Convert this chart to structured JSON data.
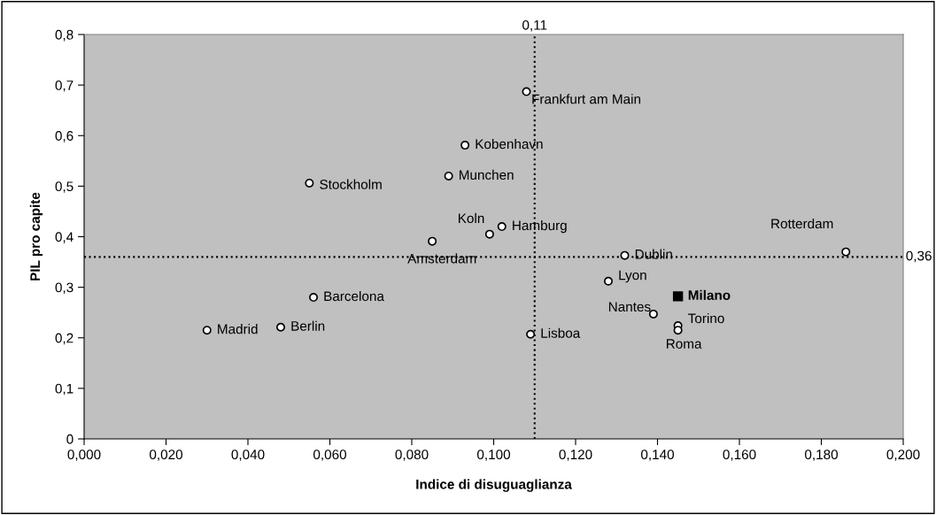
{
  "chart_data": {
    "type": "scatter",
    "xlabel": "Indice di disuguaglianza",
    "ylabel": "PIL pro capite",
    "series": [
      {
        "color": "#ffffff",
        "marker": "circle",
        "x": [
          0.03,
          0.048,
          0.056,
          0.055,
          0.085,
          0.089,
          0.093,
          0.099,
          0.102,
          0.108,
          0.109,
          0.132,
          0.128,
          0.139,
          0.145,
          0.145,
          0.186
        ],
        "values": [
          0.215,
          0.221,
          0.28,
          0.506,
          0.391,
          0.52,
          0.581,
          0.405,
          0.42,
          0.687,
          0.207,
          0.363,
          0.312,
          0.247,
          0.224,
          0.215,
          0.37
        ]
      },
      {
        "color": "#000000",
        "marker": "square",
        "x": [
          0.145
        ],
        "values": [
          0.282
        ]
      }
    ],
    "annotations": [
      {
        "text": "Madrid",
        "x": 0.03,
        "y": 0.215
      },
      {
        "text": "Berlin",
        "x": 0.048,
        "y": 0.221
      },
      {
        "text": "Barcelona",
        "x": 0.056,
        "y": 0.28
      },
      {
        "text": "Stockholm",
        "x": 0.055,
        "y": 0.506
      },
      {
        "text": "Amsterdam",
        "x": 0.085,
        "y": 0.391
      },
      {
        "text": "Munchen",
        "x": 0.089,
        "y": 0.52
      },
      {
        "text": "Kobenhavn",
        "x": 0.093,
        "y": 0.581
      },
      {
        "text": "Koln",
        "x": 0.099,
        "y": 0.405
      },
      {
        "text": "Hamburg",
        "x": 0.102,
        "y": 0.42
      },
      {
        "text": "Frankfurt am Main",
        "x": 0.108,
        "y": 0.687
      },
      {
        "text": "Lisboa",
        "x": 0.109,
        "y": 0.207
      },
      {
        "text": "Dublin",
        "x": 0.132,
        "y": 0.363
      },
      {
        "text": "Lyon",
        "x": 0.128,
        "y": 0.312
      },
      {
        "text": "Nantes",
        "x": 0.139,
        "y": 0.247
      },
      {
        "text": "Torino",
        "x": 0.145,
        "y": 0.224
      },
      {
        "text": "Roma",
        "x": 0.145,
        "y": 0.215
      },
      {
        "text": "Rotterdam",
        "x": 0.186,
        "y": 0.37
      },
      {
        "text": "Milano",
        "x": 0.145,
        "y": 0.282
      }
    ],
    "ref_lines": [
      {
        "axis": "x",
        "value": 0.11,
        "label": "0,11",
        "color": "#000000",
        "line_style": "dotted"
      },
      {
        "axis": "y",
        "value": 0.36,
        "label": "0,36",
        "color": "#000000",
        "line_style": "dotted"
      }
    ],
    "xlim": [
      0,
      0.2
    ],
    "ylim": [
      0,
      0.8
    ],
    "xticks": [
      {
        "value": 0,
        "label": "0,000"
      },
      {
        "value": 0.02,
        "label": "0,020"
      },
      {
        "value": 0.04,
        "label": "0,040"
      },
      {
        "value": 0.06,
        "label": "0,060"
      },
      {
        "value": 0.08,
        "label": "0,080"
      },
      {
        "value": 0.1,
        "label": "0,100"
      },
      {
        "value": 0.12,
        "label": "0,120"
      },
      {
        "value": 0.14,
        "label": "0,140"
      },
      {
        "value": 0.16,
        "label": "0,160"
      },
      {
        "value": 0.18,
        "label": "0,180"
      },
      {
        "value": 0.2,
        "label": "0,200"
      }
    ],
    "yticks": [
      0,
      {
        "value": 0.1,
        "label": "0,1"
      },
      {
        "value": 0.2,
        "label": "0,2"
      },
      {
        "value": 0.3,
        "label": "0,3"
      },
      {
        "value": 0.4,
        "label": "0,4"
      },
      {
        "value": 0.5,
        "label": "0,5"
      },
      {
        "value": 0.6,
        "label": "0,6"
      },
      {
        "value": 0.7,
        "label": "0,7"
      },
      {
        "value": 0.8,
        "label": "0,8"
      }
    ],
    "grid": false,
    "legend": false
  }
}
